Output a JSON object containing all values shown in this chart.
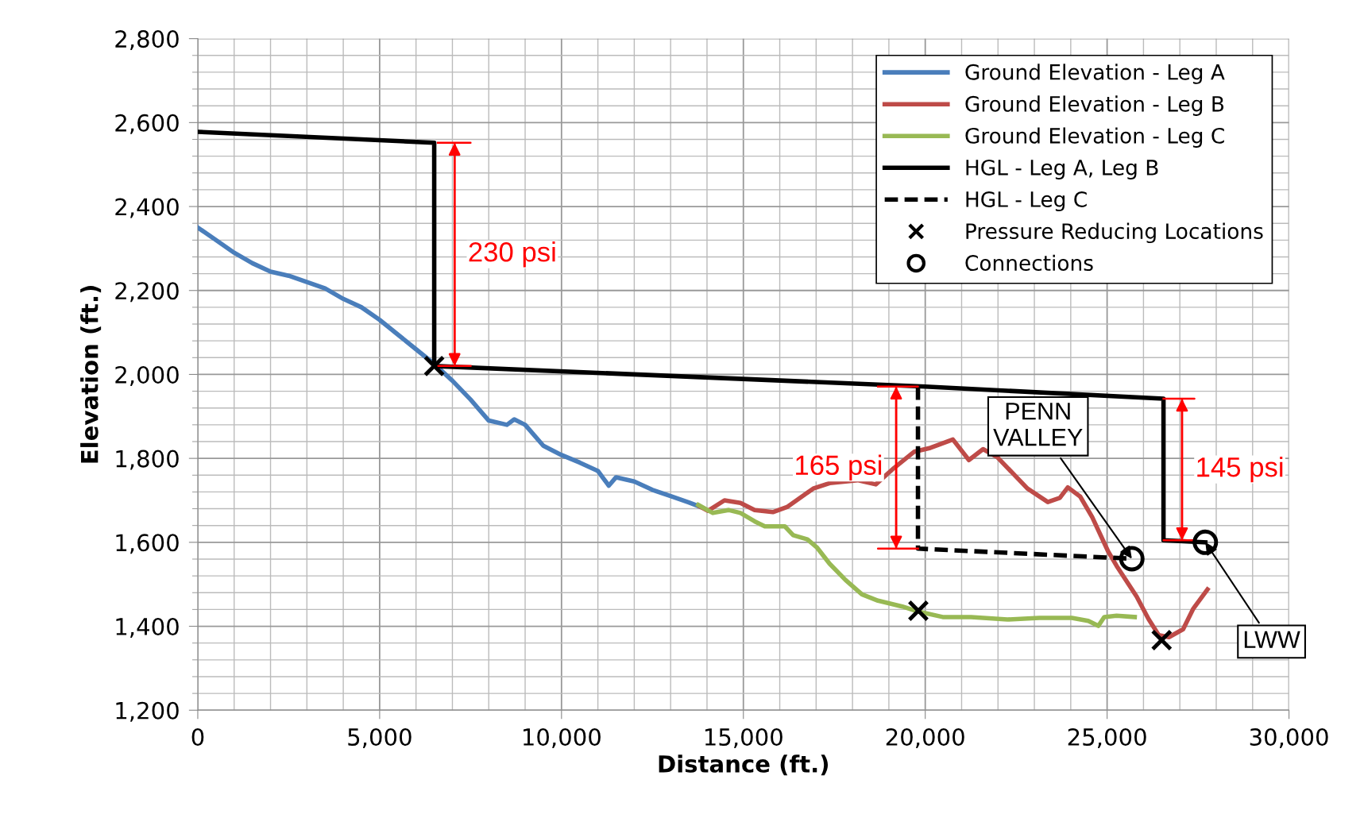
{
  "chart_data": {
    "type": "line",
    "xlabel": "Distance (ft.)",
    "ylabel": "Elevation (ft.)",
    "xlim": [
      0,
      30000
    ],
    "ylim": [
      1200,
      2800
    ],
    "xticks": [
      0,
      {
        "value": 5000,
        "label": "5,000"
      },
      {
        "value": 10000,
        "label": "10,000"
      },
      {
        "value": 15000,
        "label": "15,000"
      },
      {
        "value": 20000,
        "label": "20,000"
      },
      {
        "value": 25000,
        "label": "25,000"
      },
      {
        "value": 30000,
        "label": "30,000"
      }
    ],
    "yticks": [
      {
        "value": 1200,
        "label": "1,200"
      },
      {
        "value": 1400,
        "label": "1,400"
      },
      {
        "value": 1600,
        "label": "1,600"
      },
      {
        "value": 1800,
        "label": "1,800"
      },
      {
        "value": 2000,
        "label": "2,000"
      },
      {
        "value": 2200,
        "label": "2,200"
      },
      {
        "value": 2400,
        "label": "2,400"
      },
      {
        "value": 2600,
        "label": "2,600"
      },
      {
        "value": 2800,
        "label": "2,800"
      }
    ],
    "grid": true,
    "legend": "top right",
    "series": [
      {
        "name": "Ground Elevation - Leg A",
        "color": "#4a7ebb",
        "x": [
          0,
          500,
          1000,
          1500,
          2000,
          2500,
          3000,
          3500,
          4000,
          4500,
          5000,
          5500,
          6000,
          6500,
          7000,
          7500,
          8000,
          8500,
          8700,
          9000,
          9500,
          10000,
          10500,
          11000,
          11300,
          11500,
          12000,
          12500,
          13000,
          13500,
          13800
        ],
        "values": [
          2350,
          2320,
          2290,
          2265,
          2245,
          2235,
          2220,
          2205,
          2180,
          2160,
          2130,
          2095,
          2060,
          2025,
          1985,
          1940,
          1890,
          1880,
          1893,
          1880,
          1830,
          1808,
          1790,
          1770,
          1735,
          1755,
          1745,
          1725,
          1710,
          1695,
          1685
        ]
      },
      {
        "name": "Ground Elevation - Leg B",
        "color": "#be4b48",
        "x": [
          13810,
          14030,
          14480,
          14920,
          15310,
          15810,
          16200,
          16920,
          17370,
          18140,
          18640,
          19140,
          19700,
          20140,
          20760,
          21200,
          21590,
          21980,
          22810,
          23370,
          23700,
          23920,
          24260,
          24590,
          25030,
          25260,
          25810,
          26140,
          26420,
          26700,
          27090,
          27370,
          27760
        ],
        "values": [
          1685,
          1675,
          1700,
          1694,
          1677,
          1672,
          1684,
          1728,
          1741,
          1748,
          1738,
          1777,
          1816,
          1825,
          1845,
          1796,
          1822,
          1803,
          1728,
          1696,
          1706,
          1731,
          1709,
          1660,
          1578,
          1544,
          1471,
          1417,
          1379,
          1374,
          1393,
          1442,
          1488
        ]
      },
      {
        "name": "Ground Elevation - Leg C",
        "color": "#98b954",
        "x": [
          13760,
          14160,
          14590,
          14920,
          15310,
          15590,
          16140,
          16370,
          16760,
          17030,
          17370,
          17810,
          18260,
          18700,
          19370,
          19810,
          20480,
          21260,
          22260,
          23140,
          24030,
          24480,
          24760,
          24920,
          25260,
          25760
        ],
        "values": [
          1689,
          1670,
          1677,
          1670,
          1650,
          1638,
          1638,
          1617,
          1607,
          1587,
          1549,
          1510,
          1476,
          1461,
          1447,
          1435,
          1422,
          1422,
          1416,
          1420,
          1420,
          1413,
          1401,
          1422,
          1425,
          1422
        ]
      },
      {
        "name": "HGL - Leg A, Leg B",
        "color": "#000000",
        "line_style": "solid",
        "x": [
          0,
          6500,
          6500,
          20000,
          26550,
          26550,
          27700
        ],
        "values": [
          2578,
          2552,
          2020,
          1971,
          1942,
          1605,
          1600
        ]
      },
      {
        "name": "HGL - Leg C",
        "color": "#000000",
        "line_style": "dashed",
        "x": [
          19800,
          19800,
          25680
        ],
        "values": [
          1971,
          1585,
          1561
        ]
      },
      {
        "name": "Pressure Reducing Locations",
        "color": "#000000",
        "type": "scatter",
        "marker": "cross",
        "x": [
          6500,
          19810,
          26500
        ],
        "values": [
          2020,
          1437,
          1367
        ]
      },
      {
        "name": "Connections",
        "color": "#000000",
        "type": "scatter",
        "marker": "circle",
        "x": [
          25680,
          27700
        ],
        "values": [
          1561,
          1600
        ]
      },
      {
        "color": "#ff0000",
        "x": [
          6600,
          7500,
          7060,
          7060,
          6600,
          7500
        ],
        "values": [
          2552,
          2552,
          2552,
          2020,
          2020,
          2020
        ]
      },
      {
        "color": "#ff0000",
        "x": [
          18700,
          19800,
          19200,
          19200,
          18700,
          19800
        ],
        "values": [
          1971,
          1971,
          1971,
          1585,
          1585,
          1585
        ]
      },
      {
        "color": "#ff0000",
        "x": [
          26550,
          27400,
          27060,
          27060,
          26550,
          27400
        ],
        "values": [
          1942,
          1942,
          1942,
          1605,
          1605,
          1605
        ]
      }
    ],
    "annotations": [
      "230 psi",
      "165 psi",
      "145 psi",
      {
        "text": "PENN\nVALLEY",
        "x": 25680,
        "y": 1561
      },
      {
        "text": "LWW",
        "x": 27700,
        "y": 1600
      }
    ]
  }
}
